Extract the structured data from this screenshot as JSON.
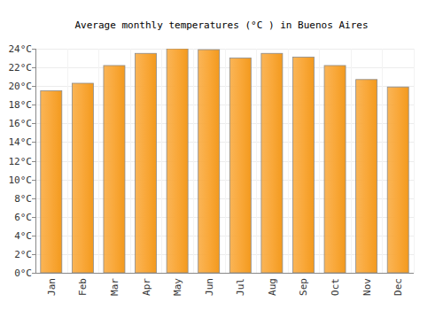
{
  "chart_data": {
    "type": "bar",
    "title": "Average monthly temperatures (°C ) in Buenos Aires",
    "categories": [
      "Jan",
      "Feb",
      "Mar",
      "Apr",
      "May",
      "Jun",
      "Jul",
      "Aug",
      "Sep",
      "Oct",
      "Nov",
      "Dec"
    ],
    "values": [
      19.5,
      20.3,
      22.2,
      23.5,
      24.0,
      23.9,
      23.0,
      23.5,
      23.1,
      22.2,
      20.7,
      19.9
    ],
    "color": "#f9a83a",
    "ylim": [
      0,
      24
    ],
    "yticks": [
      {
        "value": 0,
        "label": "0°C"
      },
      {
        "value": 2,
        "label": "2°C"
      },
      {
        "value": 4,
        "label": "4°C"
      },
      {
        "value": 6,
        "label": "6°C"
      },
      {
        "value": 8,
        "label": "8°C"
      },
      {
        "value": 10,
        "label": "10°C"
      },
      {
        "value": 12,
        "label": "12°C"
      },
      {
        "value": 14,
        "label": "14°C"
      },
      {
        "value": 16,
        "label": "16°C"
      },
      {
        "value": 18,
        "label": "18°C"
      },
      {
        "value": 20,
        "label": "20°C"
      },
      {
        "value": 22,
        "label": "22°C"
      },
      {
        "value": 24,
        "label": "24°C"
      }
    ],
    "grid": true
  }
}
